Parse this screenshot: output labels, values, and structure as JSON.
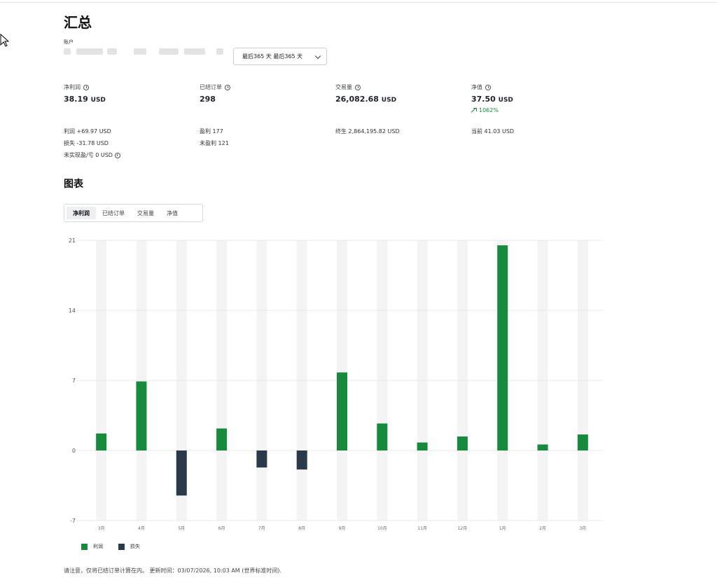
{
  "header": {
    "title": "汇总",
    "account_label": "账户",
    "period_value": "最后365 天 最后365 天"
  },
  "stats": [
    {
      "label": "净利润",
      "value": "38.19",
      "unit": "USD",
      "has_info": true
    },
    {
      "label": "已结订单",
      "value": "298",
      "unit": "",
      "has_info": true
    },
    {
      "label": "交易量",
      "value": "26,082.68",
      "unit": "USD",
      "has_info": true
    },
    {
      "label": "净值",
      "value": "37.50",
      "unit": "USD",
      "has_info": true,
      "growth": "1062%"
    }
  ],
  "details": {
    "profit": "利润 +69.97 USD",
    "loss": "损失 -31.78 USD",
    "unrealized": "未实现盈/亏 0 USD",
    "profitable": "盈利 177",
    "unprofitable": "未盈利 121",
    "lifetime": "终生 2,864,195.82 USD",
    "current": "当前 41.03 USD"
  },
  "charts_section": {
    "title": "图表",
    "tabs": [
      {
        "label": "净利润",
        "active": true
      },
      {
        "label": "已结订单",
        "active": false
      },
      {
        "label": "交易量",
        "active": false
      },
      {
        "label": "净值",
        "active": false
      }
    ]
  },
  "chart_data": {
    "type": "bar",
    "categories": [
      "3月",
      "4月",
      "5月",
      "6月",
      "7月",
      "8月",
      "9月",
      "10月",
      "11月",
      "12月",
      "1月",
      "2月",
      "3月"
    ],
    "series": [
      {
        "name": "利润",
        "values": [
          1.7,
          6.9,
          0,
          2.2,
          0,
          0,
          7.8,
          2.7,
          0.8,
          1.4,
          20.5,
          0.6,
          1.6
        ]
      },
      {
        "name": "损失",
        "values": [
          0,
          0,
          -4.5,
          0,
          -1.7,
          -1.9,
          0,
          0,
          0,
          0,
          0,
          0,
          0
        ]
      }
    ],
    "yticks": [
      21,
      14,
      7,
      0,
      -7
    ],
    "ylim": [
      -7,
      21
    ],
    "grid": true,
    "legend_position": "bottom-left",
    "colors": {
      "profit": "#188a3e",
      "loss": "#2b3a4a",
      "band": "#f4f4f4",
      "grid": "#e9e9e9"
    }
  },
  "footnote": "请注意，仅将已结订单计算在内。 更新时间：03/07/2026, 10:03 AM (世界标准时间)."
}
